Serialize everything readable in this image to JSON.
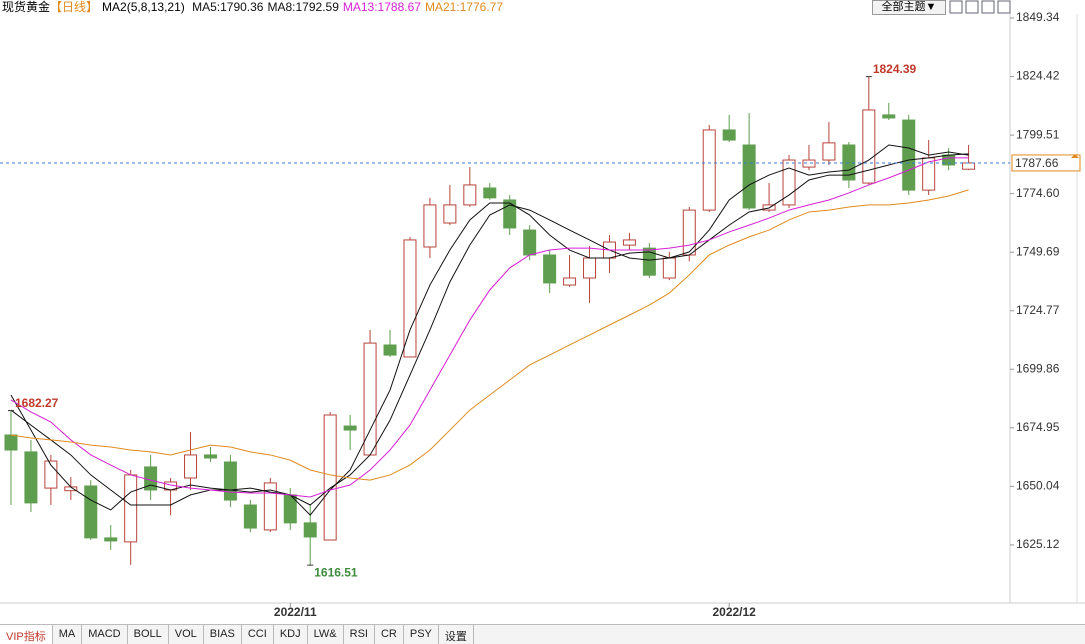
{
  "chart_data": {
    "type": "candlestick",
    "title": "现货黄金",
    "subtitle": "【日线】",
    "indicator": "MA2(5,8,13,21)",
    "categories": [
      null,
      null,
      null,
      null,
      null,
      null,
      null,
      null,
      null,
      null,
      null,
      null,
      null,
      null,
      "2022/11",
      null,
      null,
      null,
      null,
      null,
      null,
      null,
      null,
      null,
      null,
      null,
      null,
      null,
      null,
      null,
      null,
      null,
      null,
      null,
      null,
      null,
      "2022/12",
      null,
      null,
      null,
      null,
      null,
      null,
      null,
      null,
      null,
      null,
      null,
      null
    ],
    "open": [
      1671.9,
      1664.7,
      1649.3,
      1648.2,
      1650.2,
      1628.1,
      1626.4,
      1658.3,
      1648.5,
      1653.6,
      1663.4,
      1660.4,
      1642.1,
      1631.5,
      1646.4,
      1634.5,
      1627.2,
      1675.7,
      1663.4,
      1710.2,
      1705.1,
      1751.9,
      1762.1,
      1769.8,
      1777.0,
      1771.9,
      1759.1,
      1748.5,
      1735.7,
      1738.7,
      1747.2,
      1752.7,
      1751.4,
      1738.7,
      1748.5,
      1767.6,
      1801.7,
      1795.3,
      1767.6,
      1769.8,
      1785.9,
      1788.9,
      1795.3,
      1779.1,
      1808.1,
      1805.9,
      1776.1,
      1791.0,
      1785.0
    ],
    "high": [
      1682.27,
      1669.8,
      1663.4,
      1654.0,
      1652.7,
      1633.6,
      1657.0,
      1663.4,
      1653.6,
      1673.2,
      1666.8,
      1663.4,
      1644.2,
      1653.6,
      1649.3,
      1642.1,
      1681.7,
      1680.4,
      1716.6,
      1716.6,
      1756.2,
      1772.8,
      1778.3,
      1785.9,
      1779.1,
      1774.0,
      1761.2,
      1750.6,
      1748.5,
      1752.3,
      1757.0,
      1757.9,
      1753.6,
      1749.8,
      1768.9,
      1803.8,
      1808.1,
      1808.9,
      1779.1,
      1791.0,
      1795.3,
      1805.1,
      1796.6,
      1824.39,
      1813.2,
      1808.1,
      1797.4,
      1794.0,
      1795.3
    ],
    "low": [
      1642.1,
      1639.1,
      1642.1,
      1644.2,
      1627.2,
      1623.0,
      1616.6,
      1644.2,
      1637.8,
      1648.5,
      1660.4,
      1641.2,
      1630.6,
      1630.6,
      1631.5,
      1616.51,
      1627.2,
      1665.5,
      1663.4,
      1705.1,
      1705.1,
      1747.2,
      1761.2,
      1769.0,
      1772.0,
      1757.0,
      1746.3,
      1732.3,
      1734.9,
      1728.1,
      1740.8,
      1750.6,
      1738.7,
      1737.8,
      1745.8,
      1766.8,
      1796.6,
      1767.6,
      1766.8,
      1768.5,
      1784.6,
      1786.8,
      1777.0,
      1778.3,
      1805.9,
      1774.0,
      1774.0,
      1784.6,
      1784.6
    ],
    "close": [
      1665.5,
      1643.0,
      1660.8,
      1649.8,
      1628.1,
      1626.8,
      1654.9,
      1648.5,
      1651.9,
      1663.4,
      1662.1,
      1644.2,
      1632.3,
      1651.5,
      1634.5,
      1628.5,
      1680.4,
      1674.0,
      1711.0,
      1705.9,
      1754.9,
      1769.8,
      1769.8,
      1778.3,
      1772.8,
      1760.0,
      1748.5,
      1736.6,
      1738.7,
      1747.2,
      1754.0,
      1754.9,
      1739.9,
      1747.2,
      1767.6,
      1801.7,
      1797.4,
      1768.5,
      1769.8,
      1788.9,
      1788.9,
      1796.2,
      1780.4,
      1810.2,
      1806.8,
      1776.1,
      1789.8,
      1786.8,
      1787.66
    ],
    "up_color": "#b8433a",
    "down_color": "#5e9e4e",
    "series": [
      {
        "name": "MA5:1790.36",
        "color": "#111111",
        "values": [
          1688.9,
          1674.0,
          1659.1,
          1649.7,
          1644.2,
          1640.0,
          1647.6,
          1650.6,
          1648.5,
          1650.6,
          1649.3,
          1648.5,
          1647.6,
          1648.5,
          1646.4,
          1637.8,
          1648.5,
          1657.0,
          1674.0,
          1691.0,
          1716.6,
          1735.7,
          1750.6,
          1763.4,
          1770.6,
          1770.6,
          1765.5,
          1757.0,
          1750.6,
          1747.2,
          1747.2,
          1749.3,
          1749.8,
          1747.2,
          1749.8,
          1759.1,
          1771.9,
          1778.3,
          1782.5,
          1785.5,
          1782.5,
          1783.8,
          1784.6,
          1788.9,
          1795.3,
          1794.0,
          1791.0,
          1792.3,
          1791.0
        ]
      },
      {
        "name": "MA8:1792.59",
        "color": "#111111",
        "values": [
          1682.5,
          1676.1,
          1669.8,
          1663.4,
          1654.9,
          1648.5,
          1642.1,
          1642.1,
          1642.1,
          1646.4,
          1648.5,
          1648.5,
          1649.3,
          1647.6,
          1646.4,
          1642.1,
          1649.3,
          1654.9,
          1663.4,
          1678.2,
          1697.4,
          1716.6,
          1737.0,
          1752.7,
          1765.5,
          1769.8,
          1767.6,
          1763.4,
          1759.1,
          1754.9,
          1750.6,
          1747.2,
          1746.3,
          1747.2,
          1748.5,
          1754.9,
          1761.2,
          1766.8,
          1768.5,
          1774.0,
          1780.4,
          1782.5,
          1782.5,
          1784.6,
          1786.8,
          1788.9,
          1789.8,
          1791.0,
          1791.5
        ]
      },
      {
        "name": "MA13:1788.67",
        "color": "#d61fd6",
        "values": [
          1686.8,
          1681.7,
          1677.4,
          1669.8,
          1663.4,
          1659.1,
          1654.9,
          1652.7,
          1650.6,
          1649.3,
          1648.5,
          1647.6,
          1647.2,
          1647.2,
          1646.4,
          1645.5,
          1648.5,
          1650.6,
          1657.0,
          1665.5,
          1676.1,
          1691.0,
          1705.9,
          1720.8,
          1733.6,
          1743.0,
          1748.5,
          1750.6,
          1751.4,
          1751.4,
          1750.6,
          1750.6,
          1750.6,
          1751.4,
          1752.7,
          1754.9,
          1758.3,
          1761.2,
          1764.2,
          1767.6,
          1769.8,
          1771.9,
          1774.9,
          1778.3,
          1781.3,
          1784.6,
          1788.1,
          1789.8,
          1789.8
        ]
      },
      {
        "name": "MA21:1776.77",
        "color": "#e08a1e",
        "values": [
          1671.9,
          1670.6,
          1669.8,
          1668.9,
          1667.6,
          1666.8,
          1665.5,
          1664.7,
          1663.4,
          1665.5,
          1667.6,
          1666.8,
          1664.7,
          1663.4,
          1661.2,
          1657.0,
          1654.9,
          1653.6,
          1652.7,
          1654.9,
          1659.1,
          1665.5,
          1674.0,
          1682.5,
          1688.9,
          1695.3,
          1701.7,
          1705.9,
          1710.2,
          1714.4,
          1718.7,
          1722.9,
          1727.2,
          1732.3,
          1740.0,
          1748.5,
          1752.7,
          1756.2,
          1759.1,
          1763.4,
          1766.8,
          1767.6,
          1768.9,
          1769.8,
          1769.8,
          1770.6,
          1771.9,
          1773.6,
          1776.2
        ]
      }
    ],
    "annotations": [
      1682.27,
      1824.39,
      1616.51
    ],
    "last_price": 1787.66,
    "ylim": [
      1600.4,
      1849.34
    ],
    "yticks": [
      1625.12,
      1650.04,
      1674.95,
      1699.86,
      1724.77,
      1749.69,
      {
        "value": 1774.6,
        "label": "1774.60"
      },
      1799.51,
      1824.42,
      1849.34
    ]
  },
  "toolbar": {
    "theme_button": "全部主题▼"
  },
  "tabs": [
    "VIP指标",
    "MA",
    "MACD",
    "BOLL",
    "VOL",
    "BIAS",
    "CCI",
    "KDJ",
    "LW&",
    "RSI",
    "CR",
    "PSY",
    "设置"
  ]
}
